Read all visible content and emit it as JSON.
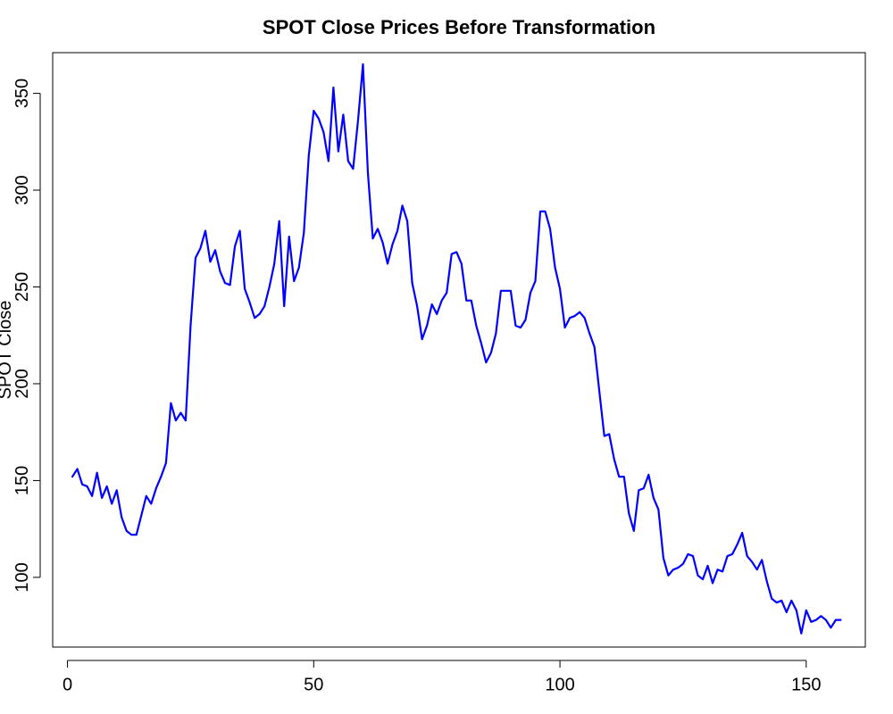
{
  "chart_data": {
    "type": "line",
    "title": "SPOT Close Prices Before Transformation",
    "xlabel": "",
    "ylabel": "SPOT Close",
    "xlim": [
      -3,
      162
    ],
    "ylim": [
      64,
      371
    ],
    "xticks": [
      0,
      50,
      100,
      150
    ],
    "yticks": [
      100,
      150,
      200,
      250,
      300,
      350
    ],
    "grid": false,
    "line_color": "#0000FF",
    "x": [
      1,
      2,
      3,
      4,
      5,
      6,
      7,
      8,
      9,
      10,
      11,
      12,
      13,
      14,
      15,
      16,
      17,
      18,
      19,
      20,
      21,
      22,
      23,
      24,
      25,
      26,
      27,
      28,
      29,
      30,
      31,
      32,
      33,
      34,
      35,
      36,
      37,
      38,
      39,
      40,
      41,
      42,
      43,
      44,
      45,
      46,
      47,
      48,
      49,
      50,
      51,
      52,
      53,
      54,
      55,
      56,
      57,
      58,
      59,
      60,
      61,
      62,
      63,
      64,
      65,
      66,
      67,
      68,
      69,
      70,
      71,
      72,
      73,
      74,
      75,
      76,
      77,
      78,
      79,
      80,
      81,
      82,
      83,
      84,
      85,
      86,
      87,
      88,
      89,
      90,
      91,
      92,
      93,
      94,
      95,
      96,
      97,
      98,
      99,
      100,
      101,
      102,
      103,
      104,
      105,
      106,
      107,
      108,
      109,
      110,
      111,
      112,
      113,
      114,
      115,
      116,
      117,
      118,
      119,
      120,
      121,
      122,
      123,
      124,
      125,
      126,
      127,
      128,
      129,
      130,
      131,
      132,
      133,
      134,
      135,
      136,
      137,
      138,
      139,
      140,
      141,
      142,
      143,
      144,
      145,
      146,
      147,
      148,
      149,
      150,
      151,
      152,
      153,
      154,
      155,
      156,
      157
    ],
    "y": [
      152,
      156,
      148,
      147,
      142,
      154,
      141,
      147,
      138,
      145,
      131,
      124,
      122,
      122,
      132,
      142,
      138,
      146,
      152,
      159,
      190,
      181,
      185,
      181,
      230,
      265,
      270,
      279,
      263,
      269,
      258,
      252,
      251,
      271,
      279,
      249,
      242,
      234,
      236,
      240,
      250,
      262,
      284,
      240,
      276,
      253,
      260,
      278,
      318,
      341,
      337,
      330,
      315,
      353,
      320,
      339,
      315,
      311,
      336,
      365,
      309,
      275,
      280,
      273,
      262,
      272,
      279,
      292,
      284,
      252,
      240,
      223,
      230,
      241,
      236,
      243,
      247,
      267,
      268,
      262,
      243,
      243,
      230,
      221,
      211,
      216,
      226,
      248,
      248,
      248,
      230,
      229,
      233,
      247,
      253,
      289,
      289,
      280,
      260,
      249,
      229,
      234,
      235,
      237,
      234,
      226,
      219,
      196,
      173,
      174,
      161,
      152,
      152,
      133,
      124,
      145,
      146,
      153,
      141,
      135,
      110,
      101,
      104,
      105,
      107,
      112,
      111,
      101,
      99,
      106,
      97,
      104,
      103,
      111,
      112,
      117,
      123,
      111,
      108,
      104,
      109,
      98,
      89,
      87,
      88,
      82,
      88,
      83,
      71,
      83,
      77,
      78,
      80,
      78,
      74,
      78,
      78
    ]
  }
}
